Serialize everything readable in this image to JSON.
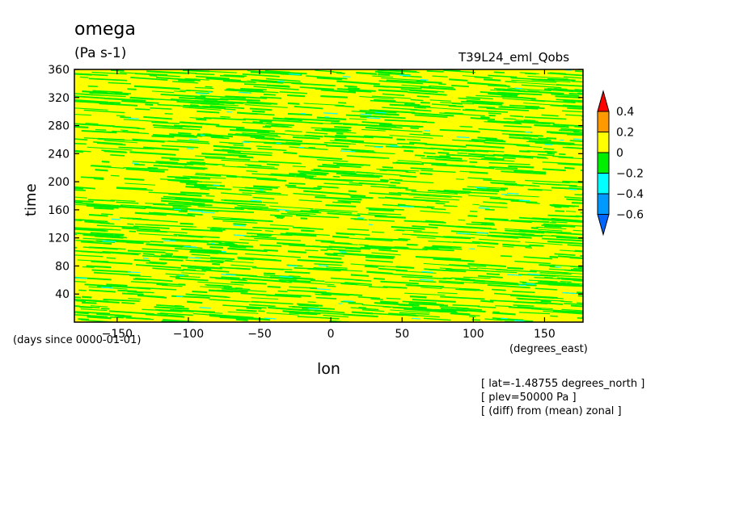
{
  "chart_data": {
    "type": "heatmap",
    "title": "omega",
    "units": "(Pa s-1)",
    "run_label": "T39L24_eml_Qobs",
    "xlabel": "lon",
    "ylabel": "time",
    "x_units": "(degrees_east)",
    "y_units": "(days since 0000-01-01)",
    "xlim": [
      -180,
      177
    ],
    "ylim": [
      0,
      360
    ],
    "x_ticks": [
      -150,
      -100,
      -50,
      0,
      50,
      100,
      150
    ],
    "y_ticks": [
      40,
      80,
      120,
      160,
      200,
      240,
      280,
      320,
      360
    ],
    "colorbar": {
      "levels": [
        0.4,
        0.2,
        0,
        -0.2,
        -0.4,
        -0.6
      ],
      "colors": [
        "#ff0000",
        "#ff9900",
        "#ffff00",
        "#00ee00",
        "#00ffff",
        "#0099ff",
        "#0066ff"
      ]
    },
    "dominant_fields": {
      "positive": "#ffff00",
      "negative": "#00ee00",
      "strong_negative": "#00ffff"
    },
    "notes": [
      "[ lat=-1.48755 degrees_north ]",
      "[ plev=50000 Pa ]",
      "[ (diff) from (mean) zonal ]"
    ]
  }
}
